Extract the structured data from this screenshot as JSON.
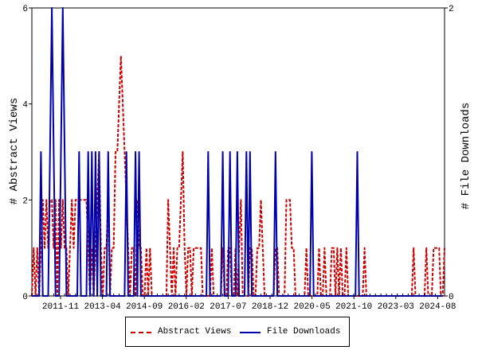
{
  "chart_data": {
    "type": "line",
    "xlabel": "",
    "ylabel": "# Abstract Views",
    "y2label": "# File Downloads",
    "ylim": [
      0,
      6
    ],
    "y2lim": [
      0,
      2
    ],
    "y_ticks": [
      "0",
      "2",
      "4",
      "6"
    ],
    "y2_ticks": [
      "0",
      "2"
    ],
    "x_tick_labels": [
      "2011-11",
      "2013-04",
      "2014-09",
      "2016-02",
      "2017-07",
      "2018-12",
      "2020-05",
      "2021-10",
      "2023-03",
      "2024-08"
    ],
    "legend_position": "bottom",
    "grid": false,
    "series": [
      {
        "name": "Abstract Views",
        "color": "#cc0000",
        "style": "dashed",
        "axis": "left",
        "x_start": "2011-11",
        "values": [
          0,
          1,
          0,
          1,
          0,
          1,
          2,
          1,
          2,
          1,
          2,
          2,
          1,
          2,
          0,
          2,
          1,
          2,
          1,
          1,
          0,
          1,
          2,
          1,
          2,
          2,
          2,
          2,
          2,
          2,
          2,
          1,
          0,
          1,
          0,
          1,
          2,
          3,
          1,
          0,
          1,
          1,
          2,
          0,
          1,
          1,
          3,
          3,
          4,
          5,
          4,
          3,
          2,
          1,
          0,
          1,
          1,
          0,
          2,
          1,
          1,
          0,
          0,
          1,
          0,
          1,
          0,
          0,
          0,
          0,
          0,
          0,
          0,
          0,
          0,
          2,
          1,
          0,
          1,
          0,
          1,
          1,
          2,
          3,
          1,
          0,
          1,
          1,
          0,
          1,
          1,
          1,
          1,
          1,
          0,
          0,
          0,
          0,
          0,
          1,
          0,
          0,
          0,
          0,
          0,
          1,
          0,
          0,
          1,
          1,
          0,
          0,
          1,
          0,
          1,
          2,
          0,
          0,
          0,
          0,
          1,
          1,
          0,
          0,
          1,
          1,
          2,
          1,
          0,
          0,
          0,
          0,
          0,
          0,
          1,
          1,
          0,
          0,
          0,
          0,
          2,
          2,
          2,
          1,
          1,
          0,
          0,
          0,
          0,
          0,
          0,
          1,
          0,
          0,
          0,
          0,
          0,
          0,
          1,
          0,
          0,
          1,
          0,
          0,
          0,
          1,
          1,
          0,
          1,
          0,
          1,
          0,
          0,
          1,
          0,
          0,
          0,
          0,
          0,
          0,
          0,
          0,
          0,
          1,
          0,
          0,
          0,
          0,
          0,
          0,
          0,
          0,
          0,
          0,
          0,
          0,
          0,
          0,
          0,
          0,
          0,
          0,
          0,
          0,
          0,
          0,
          0,
          0,
          0,
          0,
          1,
          0,
          0,
          0,
          0,
          0,
          0,
          1,
          0,
          0,
          0,
          1,
          1,
          1,
          1,
          0,
          0,
          1
        ]
      },
      {
        "name": "File Downloads",
        "color": "#0000aa",
        "style": "solid",
        "axis": "right",
        "x_start": "2011-11",
        "values": [
          0,
          0,
          0,
          0,
          0,
          1,
          0,
          0,
          0,
          0,
          1,
          2,
          1,
          0,
          0,
          0,
          1,
          2,
          1,
          0,
          0,
          0,
          0,
          0,
          0,
          0,
          1,
          0,
          0,
          0,
          0,
          1,
          0,
          1,
          0,
          1,
          0,
          1,
          0,
          0,
          0,
          0,
          1,
          0,
          0,
          0,
          0,
          0,
          0,
          0,
          0,
          0,
          1,
          0,
          0,
          0,
          0,
          1,
          0,
          1,
          0,
          0,
          0,
          0,
          0,
          0,
          0,
          0,
          0,
          0,
          0,
          0,
          0,
          0,
          0,
          0,
          0,
          0,
          0,
          0,
          0,
          0,
          0,
          0,
          0,
          0,
          0,
          0,
          0,
          0,
          0,
          0,
          0,
          0,
          0,
          0,
          0,
          1,
          0,
          0,
          0,
          0,
          0,
          0,
          0,
          1,
          0,
          0,
          0,
          1,
          0,
          0,
          0,
          1,
          0,
          0,
          0,
          0,
          1,
          0,
          1,
          0,
          0,
          0,
          0,
          0,
          0,
          0,
          0,
          0,
          0,
          0,
          0,
          0,
          1,
          0,
          0,
          0,
          0,
          0,
          0,
          0,
          0,
          0,
          0,
          0,
          0,
          0,
          0,
          0,
          0,
          0,
          0,
          0,
          1,
          0,
          0,
          0,
          0,
          0,
          0,
          0,
          0,
          0,
          0,
          0,
          0,
          0,
          0,
          0,
          0,
          0,
          0,
          0,
          0,
          0,
          0,
          0,
          0,
          1,
          0,
          0,
          0,
          0,
          0,
          0,
          0,
          0,
          0,
          0,
          0,
          0,
          0,
          0,
          0,
          0,
          0,
          0,
          0,
          0,
          0,
          0,
          0,
          0,
          0,
          0,
          0,
          0,
          0,
          0,
          0,
          0,
          0,
          0,
          0,
          0,
          0,
          0,
          0,
          0,
          0,
          0,
          0,
          0,
          0,
          0,
          0
        ]
      }
    ]
  }
}
